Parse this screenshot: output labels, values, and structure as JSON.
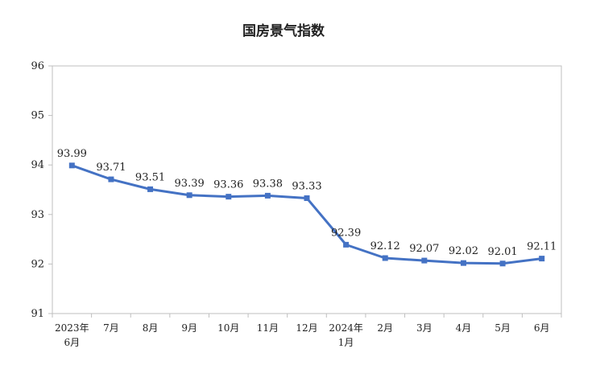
{
  "chart_data": {
    "type": "line",
    "title": "国房景气指数",
    "categories": [
      [
        "2023年",
        "6月"
      ],
      [
        "7月"
      ],
      [
        "8月"
      ],
      [
        "9月"
      ],
      [
        "10月"
      ],
      [
        "11月"
      ],
      [
        "12月"
      ],
      [
        "2024年",
        "1月"
      ],
      [
        "2月"
      ],
      [
        "3月"
      ],
      [
        "4月"
      ],
      [
        "5月"
      ],
      [
        "6月"
      ]
    ],
    "series": [
      {
        "values": [
          93.99,
          93.71,
          93.51,
          93.39,
          93.36,
          93.38,
          93.33,
          92.39,
          92.12,
          92.07,
          92.02,
          92.01,
          92.11
        ],
        "labels": [
          "93.99",
          "93.71",
          "93.51",
          "93.39",
          "93.36",
          "93.38",
          "93.33",
          "92.39",
          "92.12",
          "92.07",
          "92.02",
          "92.01",
          "92.11"
        ],
        "color": "#4472C4"
      }
    ],
    "yticks": [
      "91",
      "92",
      "93",
      "94",
      "95",
      "96"
    ],
    "ylim": [
      91,
      96
    ],
    "grid": false,
    "legend": "none"
  }
}
